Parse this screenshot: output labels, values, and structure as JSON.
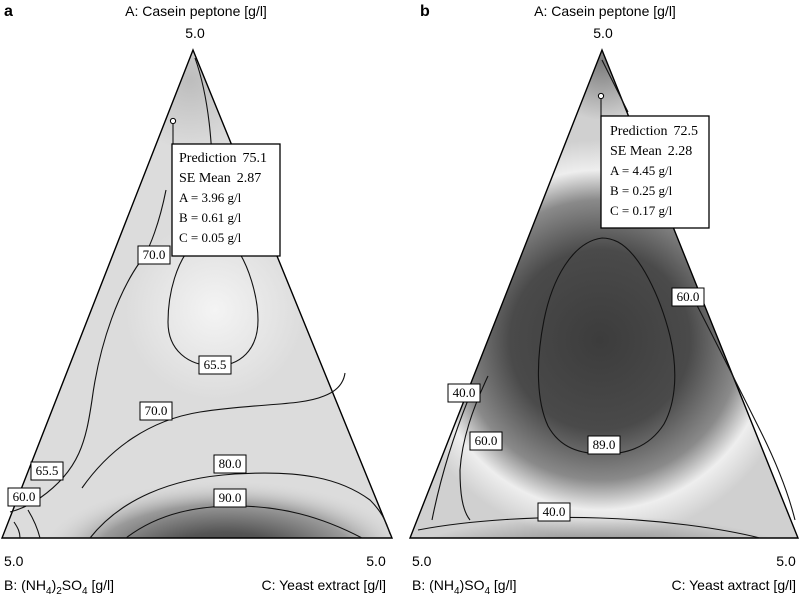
{
  "chart_data": [
    {
      "type": "contour",
      "panel_label": "a",
      "title": "",
      "axes": {
        "apex_label": "A: Casein peptone [g/l]",
        "apex_value": "5.0",
        "left_label_pre": "B: (NH",
        "left_label_sub1": "4",
        "left_label_mid": ")",
        "left_label_sub2": "2",
        "left_label_mid2": "SO",
        "left_label_sub3": "4",
        "left_label_post": " [g/l]",
        "left_value": "5.0",
        "right_label": "C: Yeast extract [g/l]",
        "right_value": "5.0"
      },
      "contour_levels": [
        "60.0",
        "65.5",
        "70.0",
        "65.5",
        "70.0",
        "80.0",
        "90.0"
      ],
      "prediction": {
        "title": "Prediction",
        "prediction_value": "75.1",
        "se_label": "SE Mean",
        "se_value": "2.87",
        "a": "A = 3.96 g/l",
        "b": "B = 0.61 g/l",
        "c": "C = 0.05 g/l",
        "components": {
          "A": 3.96,
          "B": 0.61,
          "C": 0.05
        }
      }
    },
    {
      "type": "contour",
      "panel_label": "b",
      "title": "",
      "axes": {
        "apex_label": "A: Casein peptone [g/l]",
        "apex_value": "5.0",
        "left_label_pre": "B: (NH",
        "left_label_sub1": "4",
        "left_label_mid": ")SO",
        "left_label_sub2": "4",
        "left_label_post": " [g/l]",
        "left_value": "5.0",
        "right_label": "C: Yeast axtract [g/l]",
        "right_value": "5.0"
      },
      "contour_levels": [
        "40.0",
        "60.0",
        "60.0",
        "89.0",
        "40.0"
      ],
      "prediction": {
        "title": "Prediction",
        "prediction_value": "72.5",
        "se_label": "SE Mean",
        "se_value": "2.28",
        "a": "A = 4.45 g/l",
        "b": "B = 0.25 g/l",
        "c": "C = 0.17 g/l",
        "components": {
          "A": 4.45,
          "B": 0.25,
          "C": 0.17
        }
      }
    }
  ]
}
